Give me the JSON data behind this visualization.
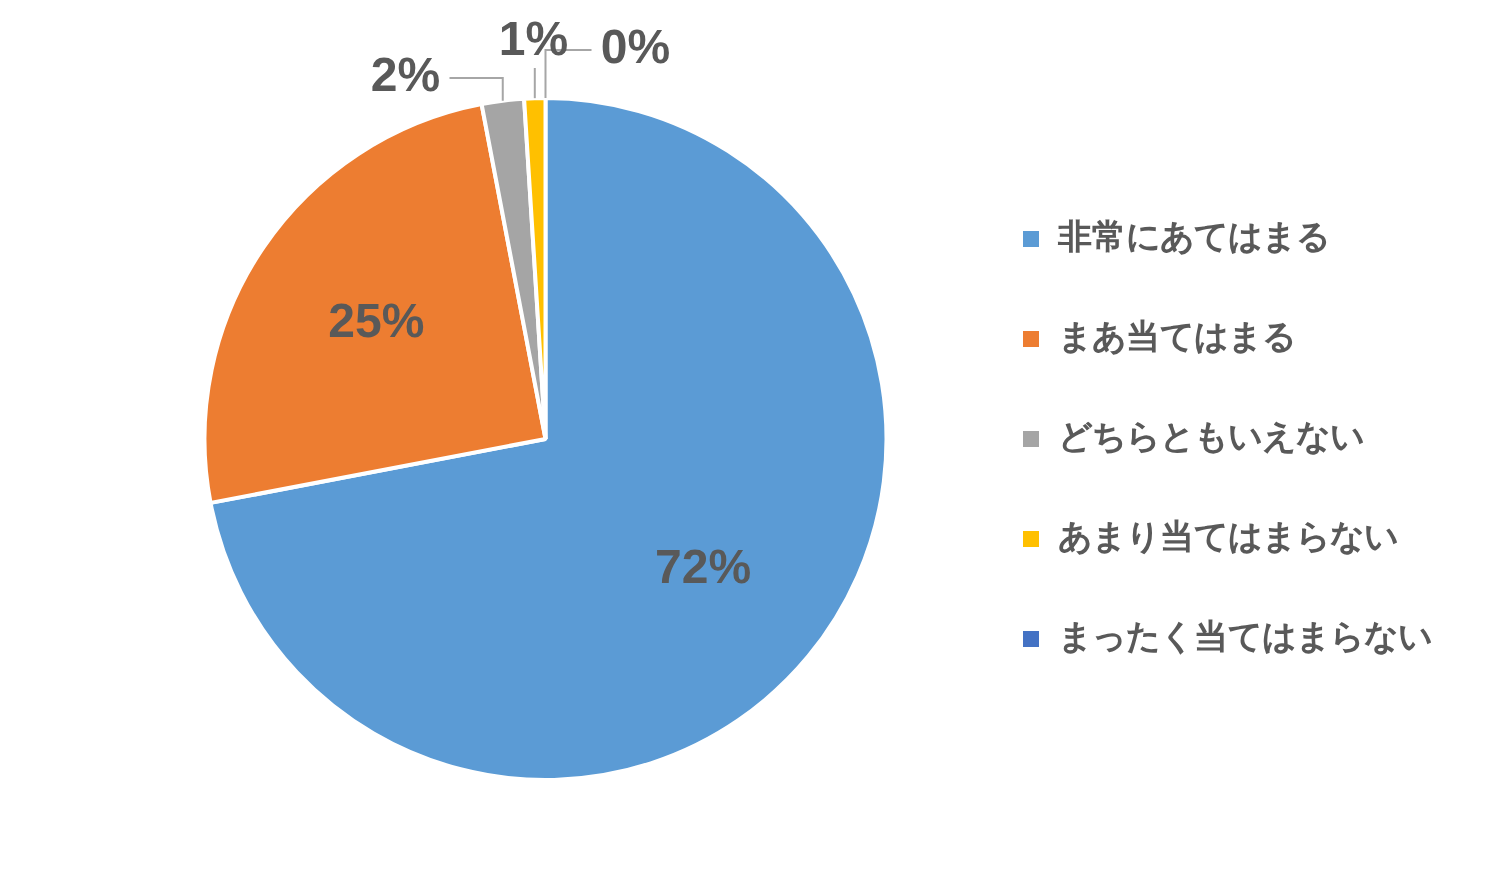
{
  "chart_data": {
    "type": "pie",
    "categories": [
      "非常にあてはまる",
      "まあ当てはまる",
      "どちらともいえない",
      "あまり当てはまらない",
      "まったく当てはまらない"
    ],
    "values": [
      72,
      25,
      2,
      1,
      0
    ],
    "colors": [
      "#5b9bd5",
      "#ed7d31",
      "#a5a5a5",
      "#ffc000",
      "#4472c4"
    ],
    "value_labels": [
      "72%",
      "25%",
      "2%",
      "1%",
      "0%"
    ],
    "legend": "right"
  }
}
